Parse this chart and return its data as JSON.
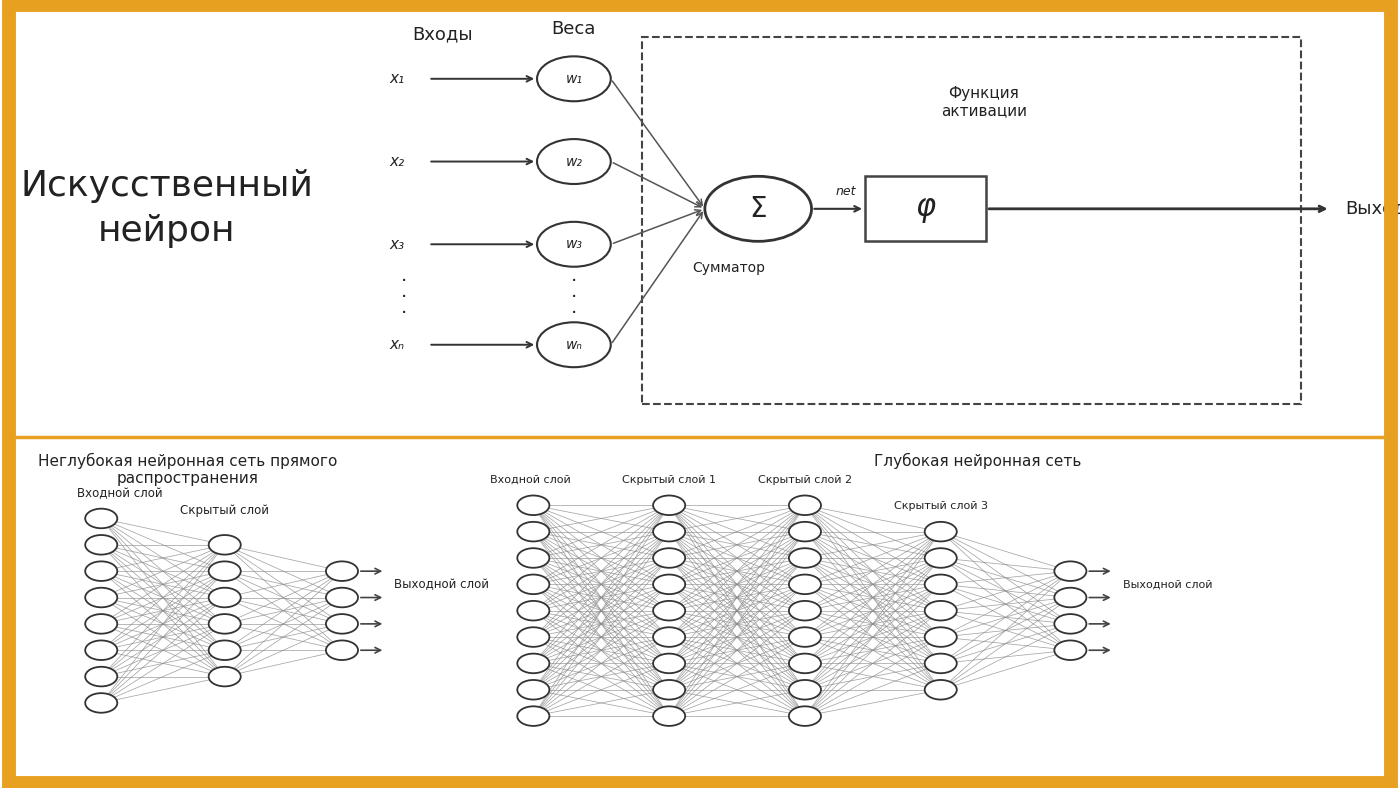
{
  "bg_color": "#ffffff",
  "border_color": "#E8A020",
  "border_width": 5,
  "title_neuron": "Искусственный\nнейрон",
  "title_shallow": "Неглубокая нейронная сеть прямого\nраспространения",
  "title_deep": "Глубокая нейронная сеть",
  "label_inputs": "Входы",
  "label_weights": "Веса",
  "label_summator": "Сумматор",
  "label_activation": "Функция\nактивации",
  "label_output": "Выход",
  "label_net": "net",
  "label_phi": "φ",
  "input_labels": [
    "x₁",
    "x₂",
    "x₃",
    "xₙ"
  ],
  "weight_labels": [
    "w₁",
    "w₂",
    "w₃",
    "wₙ"
  ],
  "shallow_input_label": "Входной слой",
  "shallow_hidden_label": "Скрытый слой",
  "shallow_output_label": "Выходной слой",
  "deep_input_label": "Входной слой",
  "deep_hidden1_label": "Скрытый слой 1",
  "deep_hidden2_label": "Скрытый слой 2",
  "deep_hidden3_label": "Скрытый слой 3",
  "deep_output_label": "Выходной слой",
  "shallow_input_n": 8,
  "shallow_hidden_n": 6,
  "shallow_output_n": 4,
  "deep_input_n": 9,
  "deep_hidden1_n": 9,
  "deep_hidden2_n": 9,
  "deep_hidden3_n": 7,
  "deep_output_n": 4,
  "node_color": "white",
  "node_edge_color": "#333333",
  "line_color": "#888888",
  "text_color": "#222222"
}
